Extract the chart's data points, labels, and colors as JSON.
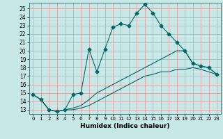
{
  "title": "",
  "xlabel": "Humidex (Indice chaleur)",
  "background_color": "#c8e8e8",
  "grid_color": "#e0a0a0",
  "line_color": "#006868",
  "xlim": [
    -0.5,
    23.5
  ],
  "ylim": [
    12.5,
    25.7
  ],
  "yticks": [
    13,
    14,
    15,
    16,
    17,
    18,
    19,
    20,
    21,
    22,
    23,
    24,
    25
  ],
  "xticks": [
    0,
    1,
    2,
    3,
    4,
    5,
    6,
    7,
    8,
    9,
    10,
    11,
    12,
    13,
    14,
    15,
    16,
    17,
    18,
    19,
    20,
    21,
    22,
    23
  ],
  "s1_x": [
    0,
    1,
    2,
    3,
    4,
    5,
    6,
    7,
    8,
    9,
    10,
    11,
    12,
    13,
    14,
    15,
    16,
    17,
    18,
    19,
    20,
    21,
    22,
    23
  ],
  "s1_y": [
    14.8,
    14.2,
    13.0,
    12.8,
    13.0,
    14.8,
    15.0,
    20.2,
    17.5,
    20.2,
    22.8,
    23.2,
    23.0,
    24.5,
    25.5,
    24.5,
    23.0,
    22.0,
    21.0,
    20.0,
    18.5,
    18.2,
    18.0,
    17.2
  ],
  "s2_x": [
    0,
    1,
    2,
    3,
    4,
    5,
    6,
    7,
    8,
    9,
    10,
    11,
    12,
    13,
    14,
    15,
    16,
    17,
    18,
    19,
    20,
    21,
    22,
    23
  ],
  "s2_y": [
    14.8,
    14.2,
    13.0,
    12.8,
    13.0,
    13.2,
    13.5,
    14.2,
    15.0,
    15.5,
    16.0,
    16.5,
    17.0,
    17.5,
    18.0,
    18.5,
    19.0,
    19.5,
    20.0,
    20.0,
    18.5,
    18.2,
    18.0,
    17.2
  ],
  "s3_x": [
    0,
    1,
    2,
    3,
    4,
    5,
    6,
    7,
    8,
    9,
    10,
    11,
    12,
    13,
    14,
    15,
    16,
    17,
    18,
    19,
    20,
    21,
    22,
    23
  ],
  "s3_y": [
    14.8,
    14.2,
    13.0,
    12.8,
    13.0,
    13.0,
    13.2,
    13.5,
    14.0,
    14.5,
    15.0,
    15.5,
    16.0,
    16.5,
    17.0,
    17.2,
    17.5,
    17.5,
    17.8,
    17.8,
    18.0,
    17.8,
    17.5,
    17.2
  ]
}
